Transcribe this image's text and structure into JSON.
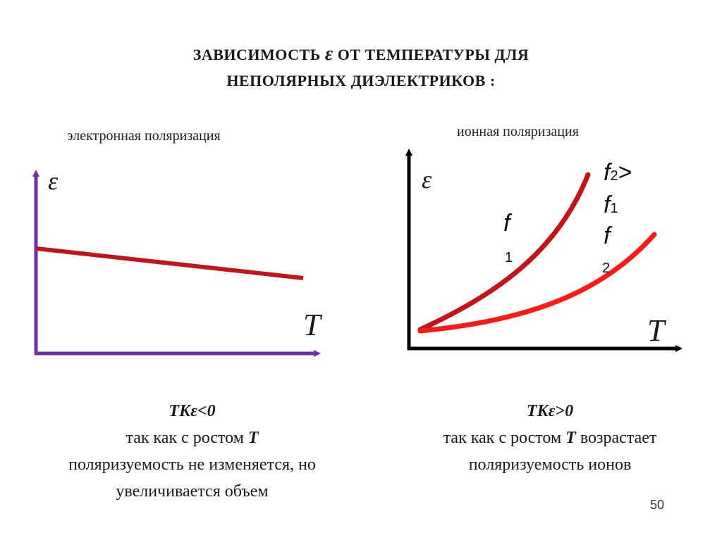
{
  "title": {
    "line1_before": "ЗАВИСИМОСТЬ",
    "symbol": "ε",
    "line1_after": "ОТ ТЕМПЕРАТУРЫ ДЛЯ",
    "line2": "НЕПОЛЯРНЫХ ДИЭЛЕКТРИКОВ :"
  },
  "left": {
    "subtitle": "электронная поляризация",
    "y_axis_label": "ε",
    "x_axis_label": "T",
    "caption": {
      "tk": "TKε<0",
      "line1_before": "так как с ростом ",
      "line1_bold": "T",
      "line2": "поляризуемость не изменяется, но",
      "line3": "увеличивается объем"
    }
  },
  "right": {
    "subtitle": "ионная поляризация",
    "y_axis_label": "ε",
    "x_axis_label": "T",
    "curve1_label": {
      "f": "f",
      "sub": "1"
    },
    "legend": {
      "line1_f": "f",
      "line1_sub": "2",
      "line1_rel": ">",
      "line2_f": "f",
      "line2_sub": "1",
      "line3_f": "f",
      "line3_sub": "2"
    },
    "caption": {
      "tk": "TKε>0",
      "line1_before": "так как с ростом ",
      "line1_bold": "T",
      "line1_after": " возрастает",
      "line2": "поляризуемость ионов"
    }
  },
  "page_number": "50",
  "colors": {
    "left_axis": "#7030a0",
    "right_axis": "#000000",
    "left_line": "#c0151b",
    "curve_f1": "#c0151b",
    "curve_f2": "#ff1a1a"
  }
}
